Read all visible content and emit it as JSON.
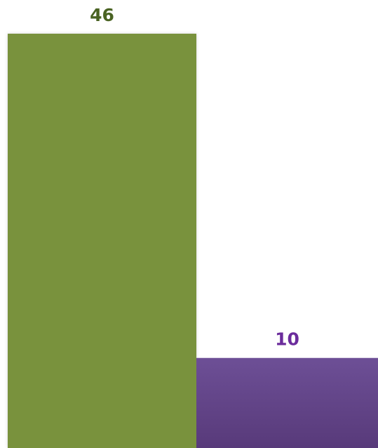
{
  "chart_data": {
    "type": "bar",
    "categories": [
      "",
      ""
    ],
    "values": [
      46,
      10
    ],
    "data_labels": [
      "46",
      "10"
    ],
    "colors": {
      "bars": [
        "#79923c",
        "#6d4f96"
      ],
      "bar_bottoms": [
        "#79923c",
        "#583a7a"
      ],
      "labels": [
        "#4a6323",
        "#6b2c9c"
      ]
    },
    "title": "",
    "xlabel": "",
    "ylabel": "",
    "ylim": [
      0,
      46
    ],
    "grid": false,
    "legend": "none"
  }
}
